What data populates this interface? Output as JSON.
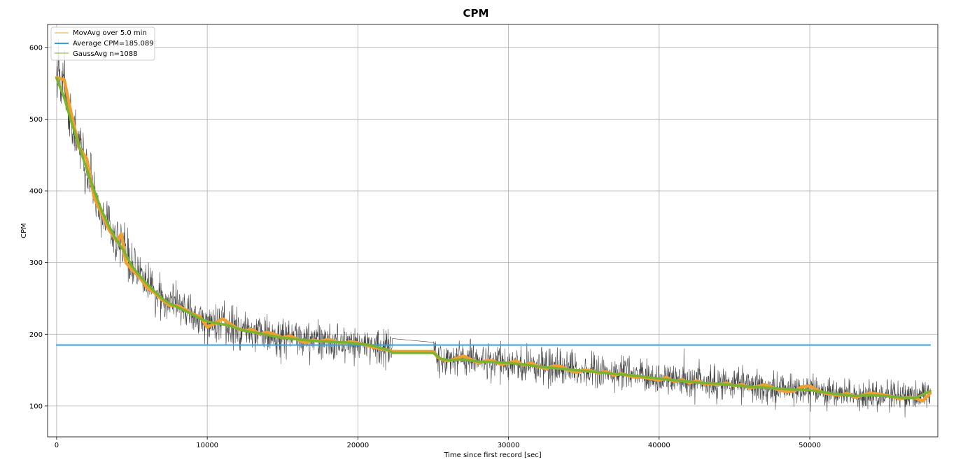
{
  "chart_data": {
    "type": "line",
    "title": "CPM",
    "xlabel": "Time since first record [sec]",
    "ylabel": "CPM",
    "xlim": [
      -600,
      58500
    ],
    "ylim": [
      57,
      632
    ],
    "x_ticks": [
      0,
      10000,
      20000,
      30000,
      40000,
      50000
    ],
    "y_ticks": [
      100,
      200,
      300,
      400,
      500,
      600
    ],
    "grid": true,
    "legend_position": "top-left",
    "gap": [
      22300,
      25000
    ],
    "series": [
      {
        "name": "MovAvg over 5.0 min",
        "color": "#f0a030",
        "points": [
          [
            0,
            558
          ],
          [
            500,
            555
          ],
          [
            1000,
            505
          ],
          [
            1500,
            460
          ],
          [
            2000,
            445
          ],
          [
            2500,
            390
          ],
          [
            3000,
            368
          ],
          [
            3500,
            345
          ],
          [
            4000,
            330
          ],
          [
            4300,
            340
          ],
          [
            4600,
            300
          ],
          [
            5000,
            290
          ],
          [
            5500,
            280
          ],
          [
            6000,
            265
          ],
          [
            6500,
            258
          ],
          [
            7000,
            248
          ],
          [
            7500,
            240
          ],
          [
            8000,
            240
          ],
          [
            8500,
            235
          ],
          [
            9000,
            228
          ],
          [
            9500,
            225
          ],
          [
            10000,
            210
          ],
          [
            10500,
            215
          ],
          [
            11000,
            222
          ],
          [
            11500,
            215
          ],
          [
            12000,
            208
          ],
          [
            12500,
            205
          ],
          [
            13000,
            207
          ],
          [
            13500,
            200
          ],
          [
            14000,
            203
          ],
          [
            14500,
            200
          ],
          [
            15000,
            195
          ],
          [
            15500,
            198
          ],
          [
            16000,
            193
          ],
          [
            16500,
            188
          ],
          [
            17000,
            192
          ],
          [
            17500,
            190
          ],
          [
            18000,
            193
          ],
          [
            18500,
            190
          ],
          [
            19000,
            187
          ],
          [
            19500,
            190
          ],
          [
            20000,
            188
          ],
          [
            20500,
            185
          ],
          [
            21000,
            182
          ],
          [
            21500,
            180
          ],
          [
            22000,
            178
          ],
          [
            22300,
            176
          ],
          [
            25000,
            176
          ],
          [
            25300,
            168
          ],
          [
            25600,
            165
          ],
          [
            26000,
            163
          ],
          [
            26500,
            166
          ],
          [
            27000,
            170
          ],
          [
            27500,
            165
          ],
          [
            28000,
            160
          ],
          [
            28500,
            163
          ],
          [
            29000,
            163
          ],
          [
            29500,
            158
          ],
          [
            30000,
            160
          ],
          [
            30500,
            163
          ],
          [
            31000,
            157
          ],
          [
            31500,
            160
          ],
          [
            32000,
            155
          ],
          [
            32500,
            152
          ],
          [
            33000,
            156
          ],
          [
            33500,
            155
          ],
          [
            34000,
            150
          ],
          [
            34500,
            147
          ],
          [
            35000,
            150
          ],
          [
            35500,
            149
          ],
          [
            36000,
            146
          ],
          [
            36500,
            148
          ],
          [
            37000,
            143
          ],
          [
            37500,
            145
          ],
          [
            38000,
            142
          ],
          [
            38500,
            140
          ],
          [
            39000,
            140
          ],
          [
            39500,
            138
          ],
          [
            40000,
            136
          ],
          [
            40500,
            140
          ],
          [
            41000,
            134
          ],
          [
            41500,
            137
          ],
          [
            42000,
            132
          ],
          [
            42500,
            135
          ],
          [
            43000,
            131
          ],
          [
            43500,
            131
          ],
          [
            44000,
            130
          ],
          [
            44500,
            132
          ],
          [
            45000,
            128
          ],
          [
            45500,
            130
          ],
          [
            46000,
            125
          ],
          [
            46500,
            127
          ],
          [
            47000,
            130
          ],
          [
            47500,
            126
          ],
          [
            48000,
            122
          ],
          [
            48500,
            120
          ],
          [
            49000,
            121
          ],
          [
            49500,
            127
          ],
          [
            50000,
            128
          ],
          [
            50500,
            122
          ],
          [
            51000,
            118
          ],
          [
            51500,
            116
          ],
          [
            52000,
            115
          ],
          [
            52500,
            118
          ],
          [
            53000,
            112
          ],
          [
            53500,
            115
          ],
          [
            54000,
            118
          ],
          [
            54500,
            117
          ],
          [
            55000,
            115
          ],
          [
            55500,
            113
          ],
          [
            56000,
            110
          ],
          [
            56500,
            112
          ],
          [
            57000,
            111
          ],
          [
            57500,
            107
          ],
          [
            58000,
            118
          ]
        ]
      },
      {
        "name": "Average CPM=185.089",
        "color": "#3a9fd8",
        "points": [
          [
            0,
            185.089
          ],
          [
            58000,
            185.089
          ]
        ]
      },
      {
        "name": "GaussAvg n=1088",
        "color": "#7ab32e",
        "points": [
          [
            0,
            557
          ],
          [
            500,
            530
          ],
          [
            1000,
            495
          ],
          [
            1500,
            462
          ],
          [
            2000,
            430
          ],
          [
            2500,
            400
          ],
          [
            3000,
            372
          ],
          [
            3500,
            350
          ],
          [
            4000,
            330
          ],
          [
            4500,
            315
          ],
          [
            5000,
            295
          ],
          [
            5500,
            282
          ],
          [
            6000,
            270
          ],
          [
            6500,
            260
          ],
          [
            7000,
            250
          ],
          [
            7500,
            243
          ],
          [
            8000,
            238
          ],
          [
            8500,
            233
          ],
          [
            9000,
            228
          ],
          [
            9500,
            222
          ],
          [
            10000,
            218
          ],
          [
            10500,
            216
          ],
          [
            11000,
            214
          ],
          [
            11500,
            212
          ],
          [
            12000,
            208
          ],
          [
            12500,
            205
          ],
          [
            13000,
            203
          ],
          [
            13500,
            201
          ],
          [
            14000,
            199
          ],
          [
            14500,
            197
          ],
          [
            15000,
            195
          ],
          [
            15500,
            194
          ],
          [
            16000,
            193
          ],
          [
            16500,
            192
          ],
          [
            17000,
            191
          ],
          [
            17500,
            190
          ],
          [
            18000,
            190
          ],
          [
            18500,
            189
          ],
          [
            19000,
            189
          ],
          [
            19500,
            188
          ],
          [
            20000,
            187
          ],
          [
            20500,
            186
          ],
          [
            21000,
            184
          ],
          [
            21500,
            181
          ],
          [
            22000,
            178
          ],
          [
            22300,
            174
          ],
          [
            25000,
            174
          ],
          [
            25500,
            166
          ],
          [
            26000,
            164
          ],
          [
            27000,
            165
          ],
          [
            28000,
            162
          ],
          [
            29000,
            161
          ],
          [
            30000,
            160
          ],
          [
            31000,
            158
          ],
          [
            32000,
            155
          ],
          [
            33000,
            153
          ],
          [
            34000,
            151
          ],
          [
            35000,
            149
          ],
          [
            36000,
            147
          ],
          [
            37000,
            145
          ],
          [
            38000,
            143
          ],
          [
            39000,
            141
          ],
          [
            40000,
            138
          ],
          [
            41000,
            136
          ],
          [
            42000,
            134
          ],
          [
            43000,
            132
          ],
          [
            44000,
            131
          ],
          [
            45000,
            129
          ],
          [
            46000,
            127
          ],
          [
            47000,
            126
          ],
          [
            48000,
            124
          ],
          [
            49000,
            123
          ],
          [
            50000,
            122
          ],
          [
            51000,
            119
          ],
          [
            52000,
            116
          ],
          [
            53000,
            114
          ],
          [
            54000,
            115
          ],
          [
            55000,
            114
          ],
          [
            56000,
            112
          ],
          [
            57000,
            111
          ],
          [
            58000,
            121
          ]
        ]
      }
    ]
  },
  "raw_noise": {
    "name": "",
    "color": "#222222",
    "seed": 1234
  }
}
